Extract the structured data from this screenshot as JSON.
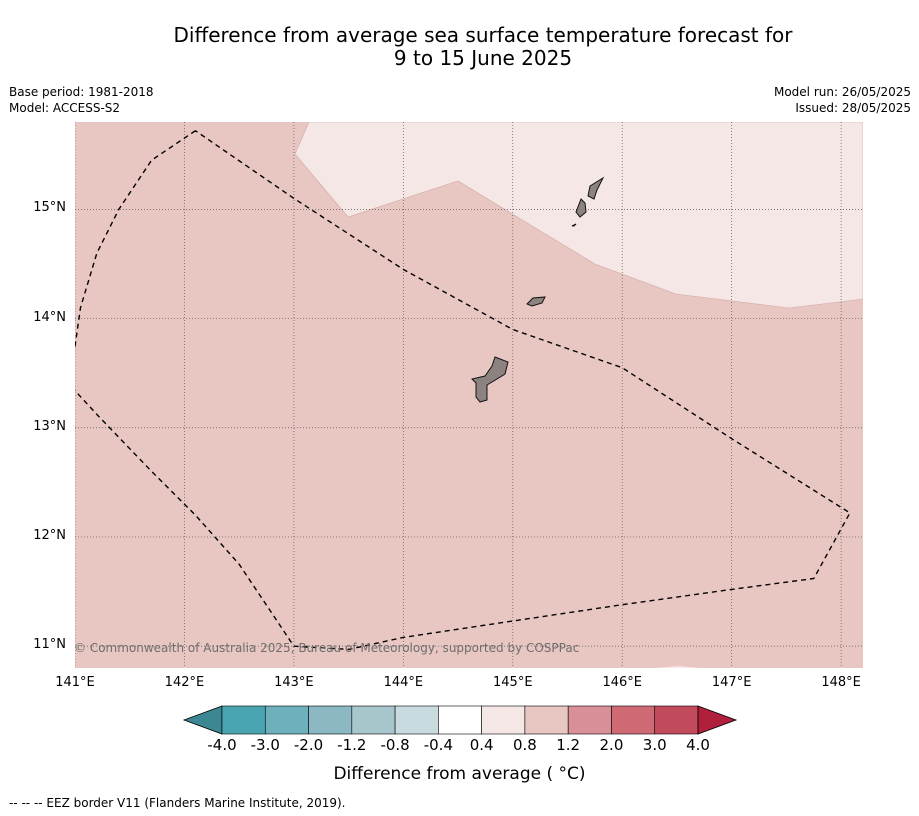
{
  "title": {
    "line1": "Difference from average sea surface temperature forecast for",
    "line2": "9 to 15 June 2025"
  },
  "meta": {
    "base_period": "Base period: 1981-2018",
    "model": "Model: ACCESS-S2",
    "model_run": "Model run: 26/05/2025",
    "issued": "Issued: 28/05/2025"
  },
  "map": {
    "lon_range": [
      141.0,
      148.2
    ],
    "lat_range": [
      10.8,
      15.8
    ],
    "lat_ticks": [
      {
        "value": 15,
        "label": "15°N"
      },
      {
        "value": 14,
        "label": "14°N"
      },
      {
        "value": 13,
        "label": "13°N"
      },
      {
        "value": 12,
        "label": "12°N"
      },
      {
        "value": 11,
        "label": "11°N"
      }
    ],
    "lon_ticks": [
      {
        "value": 141,
        "label": "141°E"
      },
      {
        "value": 142,
        "label": "142°E"
      },
      {
        "value": 143,
        "label": "143°E"
      },
      {
        "value": 144,
        "label": "144°E"
      },
      {
        "value": 145,
        "label": "145°E"
      },
      {
        "value": 146,
        "label": "146°E"
      },
      {
        "value": 147,
        "label": "147°E"
      },
      {
        "value": 148,
        "label": "148°E"
      }
    ],
    "background_category": "0.8 to 1.2",
    "background_color": "#e8c6c2",
    "warm_anomaly_region": {
      "category": "0.4 to 0.8",
      "color": "#f5e7e5"
    },
    "land_color": "#8c8381",
    "eez_border": [
      [
        142.1,
        15.72
      ],
      [
        141.7,
        15.45
      ],
      [
        141.4,
        15.0
      ],
      [
        141.2,
        14.6
      ],
      [
        141.05,
        14.1
      ],
      [
        140.98,
        13.6
      ],
      [
        140.99,
        13.35
      ],
      [
        141.22,
        13.1
      ],
      [
        141.7,
        12.6
      ],
      [
        142.1,
        12.2
      ],
      [
        142.5,
        11.75
      ],
      [
        143.0,
        11.0
      ],
      [
        143.5,
        10.97
      ],
      [
        144.0,
        11.08
      ],
      [
        145.0,
        11.23
      ],
      [
        146.0,
        11.38
      ],
      [
        147.0,
        11.52
      ],
      [
        147.75,
        11.62
      ],
      [
        148.08,
        12.22
      ],
      [
        147.0,
        12.9
      ],
      [
        146.0,
        13.55
      ],
      [
        145.0,
        13.9
      ],
      [
        144.0,
        14.45
      ],
      [
        143.0,
        15.1
      ],
      [
        142.1,
        15.72
      ]
    ],
    "gridlines": "dotted",
    "copyright": "© Commonwealth of Australia 2025, Bureau of Meteorology, supported by COSPPac"
  },
  "colorbar": {
    "boundaries": [
      "-4.0",
      "-3.0",
      "-2.0",
      "-1.2",
      "-0.8",
      "-0.4",
      "0.4",
      "0.8",
      "1.2",
      "2.0",
      "3.0",
      "4.0"
    ],
    "under_color": "#3d8792",
    "over_color": "#b01f3c",
    "colors": [
      "#4aa5b3",
      "#6eb0bc",
      "#8bb8c2",
      "#a7c6cb",
      "#c9dbdf",
      "#ffffff",
      "#f5e7e5",
      "#e8c6c2",
      "#d98f97",
      "#cf6a75",
      "#c14a5c"
    ],
    "label": "Difference from average ( °C)"
  },
  "footer": {
    "eez_legend": "--  --  -- EEZ border V11 (Flanders Marine Institute, 2019)."
  }
}
